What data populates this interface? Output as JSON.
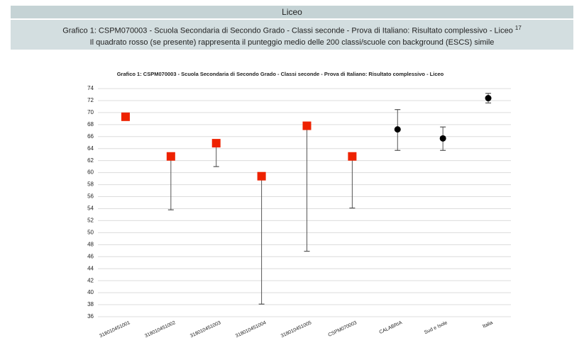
{
  "header": {
    "title": "Liceo"
  },
  "caption": {
    "line1": "Grafico 1: CSPM070003 - Scuola Secondaria di Secondo Grado - Classi seconde - Prova di Italiano: Risultato complessivo - Liceo",
    "note": "17",
    "line2": "Il quadrato rosso (se presente) rappresenta il punteggio medio delle 200 classi/scuole con background (ESCS) simile"
  },
  "chart_data": {
    "type": "errorbar",
    "title": "Grafico 1: CSPM070003 - Scuola Secondaria di Secondo Grado - Classi seconde - Prova di Italiano: Risultato complessivo - Liceo",
    "categories": [
      "318010451001",
      "318010451002",
      "318010451003",
      "318010451004",
      "318010451005",
      "CSPM070003",
      "CALABRIA",
      "Sud e Isole",
      "Italia"
    ],
    "values": [
      69.3,
      62.7,
      64.9,
      59.4,
      67.8,
      62.7,
      67.2,
      65.7,
      72.4
    ],
    "low": [
      null,
      53.8,
      61.0,
      38.1,
      46.9,
      54.1,
      63.7,
      63.7,
      71.6
    ],
    "high": [
      null,
      null,
      null,
      null,
      null,
      null,
      70.5,
      67.6,
      73.2
    ],
    "marker_shapes": [
      "square",
      "square",
      "square",
      "square",
      "square",
      "square",
      "circle",
      "circle",
      "circle"
    ],
    "marker_colors": [
      "#ee2200",
      "#ee2200",
      "#ee2200",
      "#ee2200",
      "#ee2200",
      "#ee2200",
      "#000000",
      "#000000",
      "#000000"
    ],
    "ylim": [
      36,
      74
    ],
    "yticks": [
      36,
      38,
      40,
      42,
      44,
      46,
      48,
      50,
      52,
      54,
      56,
      58,
      60,
      62,
      64,
      66,
      68,
      70,
      72,
      74
    ],
    "grid": true
  }
}
